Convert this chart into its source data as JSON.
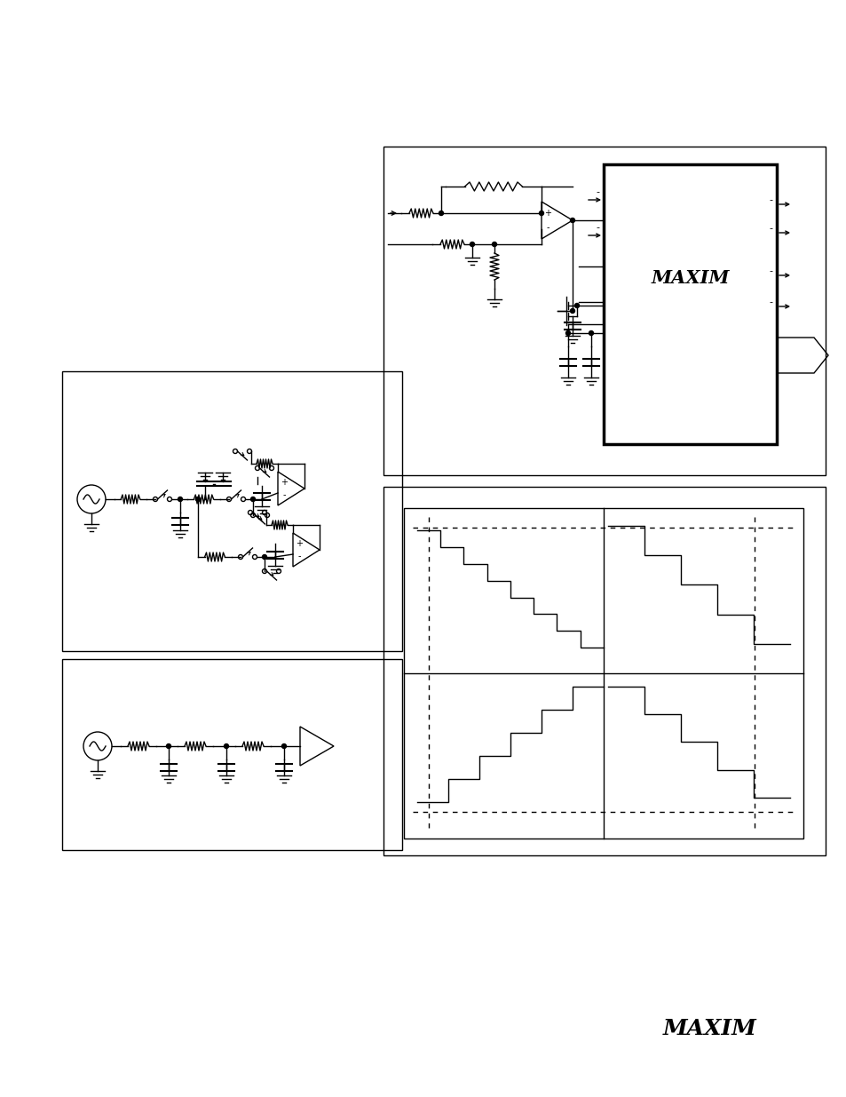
{
  "background_color": "#ffffff",
  "page_width": 9.54,
  "page_height": 12.35,
  "maxim_logo_text": "MAXIM",
  "lw": 1.0,
  "lw_thick": 2.5
}
